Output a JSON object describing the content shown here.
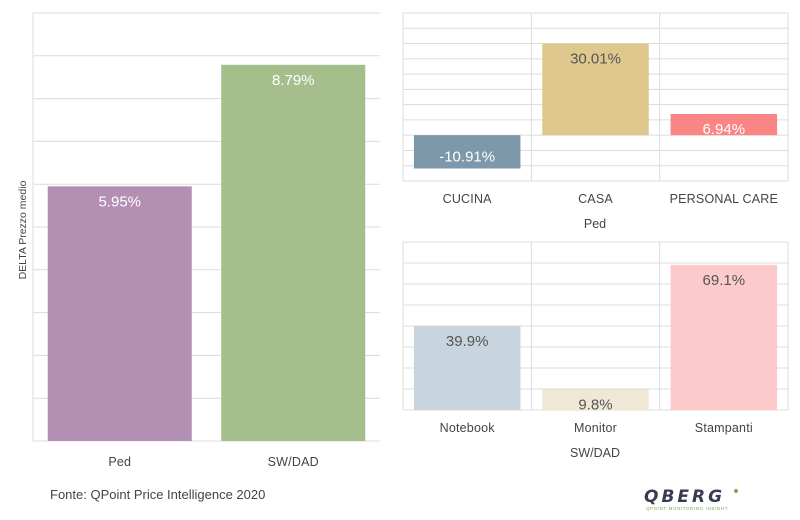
{
  "chart_data": [
    {
      "type": "bar",
      "ylabel": "DELTA Prezzo medio",
      "xlabel": "",
      "categories": [
        "Ped",
        "SW/DAD"
      ],
      "values": [
        5.95,
        8.79
      ],
      "value_labels": [
        "5.95%",
        "8.79%"
      ],
      "colors": [
        "#b38fb3",
        "#a4bf8c"
      ],
      "ylim": [
        0,
        10
      ],
      "grid": true
    },
    {
      "type": "bar",
      "xlabel": "Ped",
      "categories": [
        "CUCINA",
        "CASA",
        "PERSONAL CARE"
      ],
      "values": [
        -10.91,
        30.01,
        6.94
      ],
      "value_labels": [
        "-10.91%",
        "30.01%",
        "6.94%"
      ],
      "colors": [
        "#7d97ab",
        "#dfc88d",
        "#f98585"
      ],
      "ylim": [
        -15,
        40
      ],
      "grid": true
    },
    {
      "type": "bar",
      "xlabel": "SW/DAD",
      "categories": [
        "Notebook",
        "Monitor",
        "Stampanti"
      ],
      "values": [
        39.9,
        9.8,
        69.1
      ],
      "value_labels": [
        "39.9%",
        "9.8%",
        "69.1%"
      ],
      "colors": [
        "#c9d5de",
        "#f0e8d5",
        "#fccaca"
      ],
      "ylim": [
        0,
        80
      ],
      "grid": true
    }
  ],
  "footer": {
    "source": "Fonte: QPoint Price Intelligence 2020",
    "logo_text": "QBERG",
    "logo_tagline": "QPOINT MONITORING INSIGHT"
  }
}
